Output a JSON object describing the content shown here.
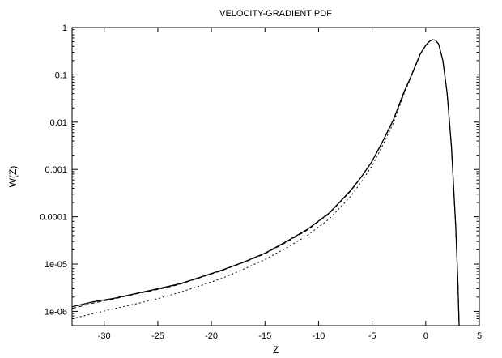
{
  "chart_data": {
    "type": "line",
    "title": "VELOCITY-GRADIENT PDF",
    "xlabel": "Z",
    "ylabel": "W(Z)",
    "xlim": [
      -33,
      5
    ],
    "ylim": [
      5e-07,
      1
    ],
    "yscale": "log",
    "grid": false,
    "x_ticks": [
      -30,
      -25,
      -20,
      -15,
      -10,
      -5,
      0,
      5
    ],
    "x_tick_labels": [
      "-30",
      "-25",
      "-20",
      "-15",
      "-10",
      "-5",
      "0",
      "5"
    ],
    "y_ticks": [
      1,
      0.1,
      0.01,
      0.001,
      0.0001,
      1e-05,
      1e-06
    ],
    "y_tick_labels": [
      "1",
      "0.1",
      "0.01",
      "0.001",
      "0.0001",
      "1e-05",
      "1e-06"
    ],
    "series": [
      {
        "style": "solid",
        "color": "#000000",
        "x": [
          -33,
          -31,
          -29,
          -27,
          -25,
          -23,
          -21,
          -19,
          -17,
          -15,
          -13,
          -11,
          -9,
          -7,
          -6,
          -5,
          -4,
          -3,
          -2,
          -1.5,
          -1,
          -0.5,
          0,
          0.3,
          0.6,
          0.9,
          1.2,
          1.6,
          2.0,
          2.4,
          2.8,
          3.0,
          3.2
        ],
        "y": [
          1.25e-06,
          1.6e-06,
          1.9e-06,
          2.4e-06,
          3e-06,
          3.8e-06,
          5.3e-06,
          7.5e-06,
          1.1e-05,
          1.7e-05,
          3e-05,
          5.5e-05,
          0.00012,
          0.00036,
          0.0007,
          0.0015,
          0.004,
          0.0115,
          0.045,
          0.08,
          0.15,
          0.28,
          0.42,
          0.5,
          0.55,
          0.54,
          0.45,
          0.2,
          0.04,
          0.003,
          6e-05,
          4e-06,
          1e-07
        ]
      },
      {
        "style": "dashed",
        "color": "#000000",
        "x": [
          -33,
          -31,
          -29,
          -27,
          -25,
          -23,
          -21,
          -19,
          -17,
          -15,
          -13,
          -11,
          -9,
          -7,
          -6,
          -5,
          -4,
          -3,
          -2,
          -1.5,
          -1,
          -0.5,
          0,
          0.3,
          0.6,
          0.9,
          1.2,
          1.6,
          2.0,
          2.4,
          2.8,
          3.0,
          3.2
        ],
        "y": [
          1.15e-06,
          1.5e-06,
          1.85e-06,
          2.35e-06,
          2.9e-06,
          3.7e-06,
          5.2e-06,
          7.3e-06,
          1.08e-05,
          1.65e-05,
          2.9e-05,
          5.3e-05,
          0.000117,
          0.00035,
          0.00069,
          0.00148,
          0.0039,
          0.0112,
          0.044,
          0.079,
          0.148,
          0.278,
          0.418,
          0.5,
          0.55,
          0.54,
          0.45,
          0.2,
          0.04,
          0.003,
          6e-05,
          4e-06,
          1e-07
        ]
      },
      {
        "style": "dotted",
        "color": "#000000",
        "x": [
          -33,
          -31,
          -29,
          -27,
          -25,
          -23,
          -21,
          -19,
          -17,
          -15,
          -13,
          -11,
          -9,
          -7,
          -6,
          -5,
          -4,
          -3,
          -2,
          -1.5,
          -1,
          -0.5,
          0,
          0.3,
          0.6,
          0.9,
          1.2,
          1.6,
          2.0,
          2.4,
          2.8,
          3.0,
          3.2
        ],
        "y": [
          7e-07,
          9e-07,
          1.15e-06,
          1.45e-06,
          1.85e-06,
          2.5e-06,
          3.5e-06,
          5e-06,
          7.8e-06,
          1.25e-05,
          2.2e-05,
          4.1e-05,
          9e-05,
          0.00027,
          0.00055,
          0.0012,
          0.0033,
          0.0098,
          0.041,
          0.075,
          0.143,
          0.272,
          0.414,
          0.5,
          0.55,
          0.54,
          0.45,
          0.2,
          0.04,
          0.003,
          6e-05,
          4e-06,
          1e-07
        ]
      }
    ]
  }
}
